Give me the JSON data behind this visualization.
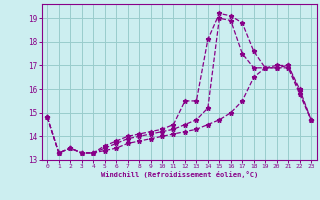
{
  "title": "",
  "xlabel": "Windchill (Refroidissement éolien,°C)",
  "ylabel": "",
  "bg_color": "#cceef0",
  "line_color": "#880088",
  "grid_color": "#99cccc",
  "axis_color": "#880088",
  "text_color": "#880088",
  "xlim": [
    -0.5,
    23.5
  ],
  "ylim": [
    13.0,
    19.6
  ],
  "yticks": [
    13,
    14,
    15,
    16,
    17,
    18,
    19
  ],
  "xticks": [
    0,
    1,
    2,
    3,
    4,
    5,
    6,
    7,
    8,
    9,
    10,
    11,
    12,
    13,
    14,
    15,
    16,
    17,
    18,
    19,
    20,
    21,
    22,
    23
  ],
  "series": [
    {
      "x": [
        0,
        1,
        2,
        3,
        4,
        5,
        6,
        7,
        8,
        9,
        10,
        11,
        12,
        13,
        14,
        15,
        16,
        17,
        18,
        19,
        20,
        21,
        22,
        23
      ],
      "y": [
        14.8,
        13.3,
        13.5,
        13.3,
        13.3,
        13.6,
        13.8,
        14.0,
        14.1,
        14.2,
        14.3,
        14.5,
        15.5,
        15.5,
        18.1,
        19.2,
        19.1,
        18.8,
        17.6,
        16.9,
        17.0,
        17.0,
        15.9,
        14.7
      ]
    },
    {
      "x": [
        0,
        1,
        2,
        3,
        4,
        5,
        6,
        7,
        8,
        9,
        10,
        11,
        12,
        13,
        14,
        15,
        16,
        17,
        18,
        19,
        20,
        21,
        22,
        23
      ],
      "y": [
        14.8,
        13.3,
        13.5,
        13.3,
        13.3,
        13.5,
        13.7,
        13.9,
        14.0,
        14.1,
        14.2,
        14.3,
        14.5,
        14.7,
        15.2,
        19.0,
        18.9,
        17.5,
        16.9,
        16.9,
        16.9,
        16.9,
        15.8,
        14.7
      ]
    },
    {
      "x": [
        0,
        1,
        2,
        3,
        4,
        5,
        6,
        7,
        8,
        9,
        10,
        11,
        12,
        13,
        14,
        15,
        16,
        17,
        18,
        19,
        20,
        21,
        22,
        23
      ],
      "y": [
        14.8,
        13.3,
        13.5,
        13.3,
        13.3,
        13.4,
        13.5,
        13.7,
        13.8,
        13.9,
        14.0,
        14.1,
        14.2,
        14.3,
        14.5,
        14.7,
        15.0,
        15.5,
        16.5,
        16.9,
        16.9,
        17.0,
        16.0,
        14.7
      ]
    }
  ]
}
